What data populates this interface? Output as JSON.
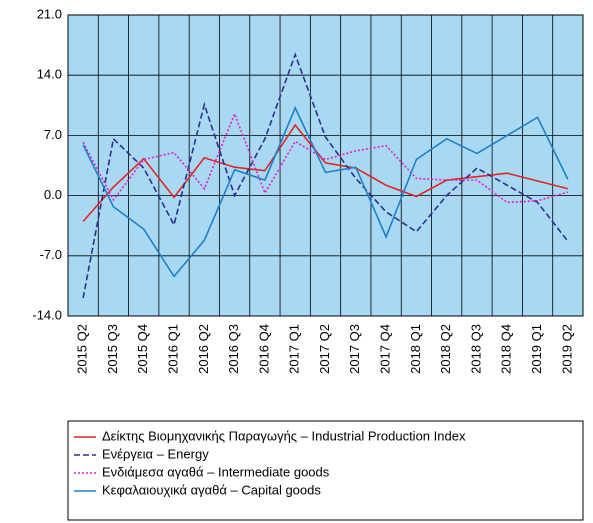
{
  "chart_data": {
    "type": "line",
    "categories": [
      "2015 Q2",
      "2015 Q3",
      "2015 Q4",
      "2016 Q1",
      "2016 Q2",
      "2016 Q3",
      "2016 Q4",
      "2017 Q1",
      "2017 Q2",
      "2017 Q3",
      "2017 Q4",
      "2018 Q1",
      "2018 Q2",
      "2018 Q3",
      "2018 Q4",
      "2019 Q1",
      "2019 Q2"
    ],
    "series": [
      {
        "name": "Δείκτης Βιομηχανικής Παραγωγής – Industrial Production Index",
        "color": "#e02424",
        "style": "solid",
        "values": [
          -3.0,
          1.0,
          4.3,
          -0.2,
          4.4,
          3.3,
          2.9,
          8.2,
          3.8,
          3.2,
          1.2,
          -0.1,
          1.8,
          2.2,
          2.6,
          1.7,
          0.8
        ]
      },
      {
        "name": "Ενέργεια – Energy",
        "color": "#2e2e8f",
        "style": "dashed",
        "values": [
          -11.9,
          6.6,
          3.2,
          -3.4,
          10.6,
          0.0,
          6.6,
          16.4,
          6.8,
          2.0,
          -1.9,
          -4.2,
          0.0,
          3.2,
          1.2,
          -0.8,
          -5.3
        ]
      },
      {
        "name": "Ενδιάμεσα αγαθά – Intermediate goods",
        "color": "#e020c8",
        "style": "dotted",
        "values": [
          6.2,
          -0.5,
          4.2,
          5.0,
          0.8,
          9.5,
          0.3,
          6.3,
          4.2,
          5.2,
          5.8,
          2.0,
          1.8,
          1.8,
          -0.8,
          -0.6,
          0.4
        ]
      },
      {
        "name": "Κεφαλαιουχικά αγαθά – Capital goods",
        "color": "#1e80c8",
        "style": "solid",
        "values": [
          5.9,
          -1.3,
          -3.9,
          -9.4,
          -5.2,
          3.0,
          1.8,
          10.2,
          2.7,
          3.3,
          -4.8,
          4.2,
          6.6,
          4.9,
          7.0,
          9.1,
          1.9
        ]
      }
    ],
    "ylim": [
      -14,
      21
    ],
    "yticks": [
      {
        "value": -14,
        "label": "-14.0"
      },
      {
        "value": -7,
        "label": "-7.0"
      },
      {
        "value": 0,
        "label": "0.0"
      },
      {
        "value": 7,
        "label": "7.0"
      },
      {
        "value": 14,
        "label": "14.0"
      },
      {
        "value": 21,
        "label": "21.0"
      }
    ],
    "grid": true,
    "background": "#a9d9f2"
  }
}
